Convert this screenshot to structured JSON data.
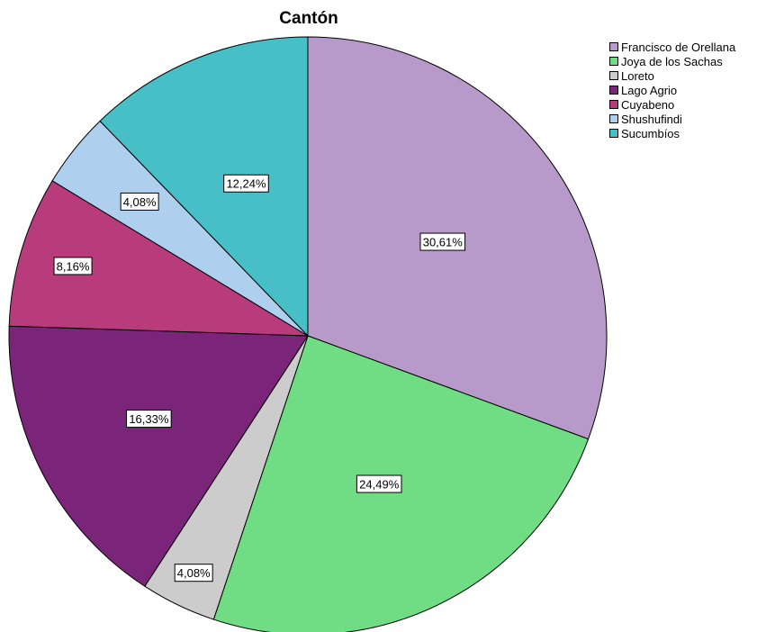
{
  "chart_data": {
    "type": "pie",
    "title": "Cantón",
    "slices": [
      {
        "label": "Francisco de Orellana",
        "value": 30.61,
        "value_label": "30,61%",
        "color": "#b79aca"
      },
      {
        "label": "Joya de los Sachas",
        "value": 24.49,
        "value_label": "24,49%",
        "color": "#70dc84"
      },
      {
        "label": "Loreto",
        "value": 4.08,
        "value_label": "4,08%",
        "color": "#cccccc"
      },
      {
        "label": "Lago Agrio",
        "value": 16.33,
        "value_label": "16,33%",
        "color": "#7a2579"
      },
      {
        "label": "Cuyabeno",
        "value": 8.16,
        "value_label": "8,16%",
        "color": "#b83c7c"
      },
      {
        "label": "Shushufindi",
        "value": 4.08,
        "value_label": "4,08%",
        "color": "#aed0ee"
      },
      {
        "label": "Sucumbíos",
        "value": 12.24,
        "value_label": "12,24%",
        "color": "#46c0c6"
      }
    ],
    "start_angle": "12 o'clock",
    "direction": "clockwise",
    "legend_position": "top-right"
  }
}
